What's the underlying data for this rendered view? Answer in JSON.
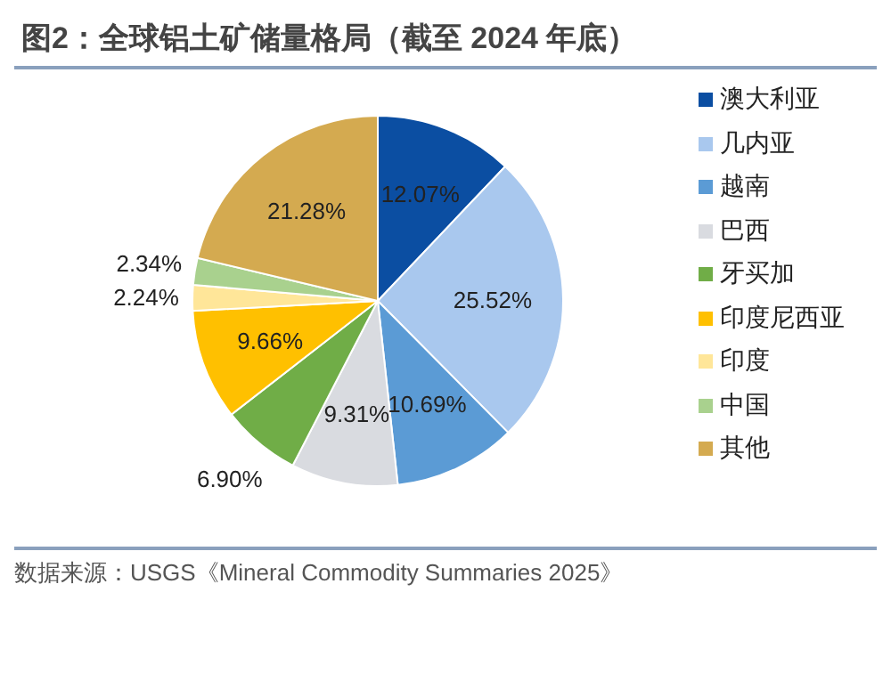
{
  "chart_data": {
    "type": "pie",
    "title": "图2：全球铝土矿储量格局（截至 2024 年底）",
    "categories": [
      "澳大利亚",
      "几内亚",
      "越南",
      "巴西",
      "牙买加",
      "印度尼西亚",
      "印度",
      "中国",
      "其他"
    ],
    "values": [
      12.07,
      25.52,
      10.69,
      9.31,
      6.9,
      9.66,
      2.24,
      2.34,
      21.28
    ],
    "value_labels": [
      "12.07%",
      "25.52%",
      "10.69%",
      "9.31%",
      "6.90%",
      "9.66%",
      "2.24%",
      "2.34%",
      "21.28%"
    ],
    "colors": [
      "#0b4ea2",
      "#a9c8ee",
      "#5b9bd5",
      "#d9dbe0",
      "#70ad47",
      "#ffc000",
      "#ffe699",
      "#a9d18e",
      "#d4aa50"
    ],
    "legend": "right",
    "annotations": [
      "数据来源：USGS《Mineral Commodity Summaries 2025》"
    ]
  }
}
